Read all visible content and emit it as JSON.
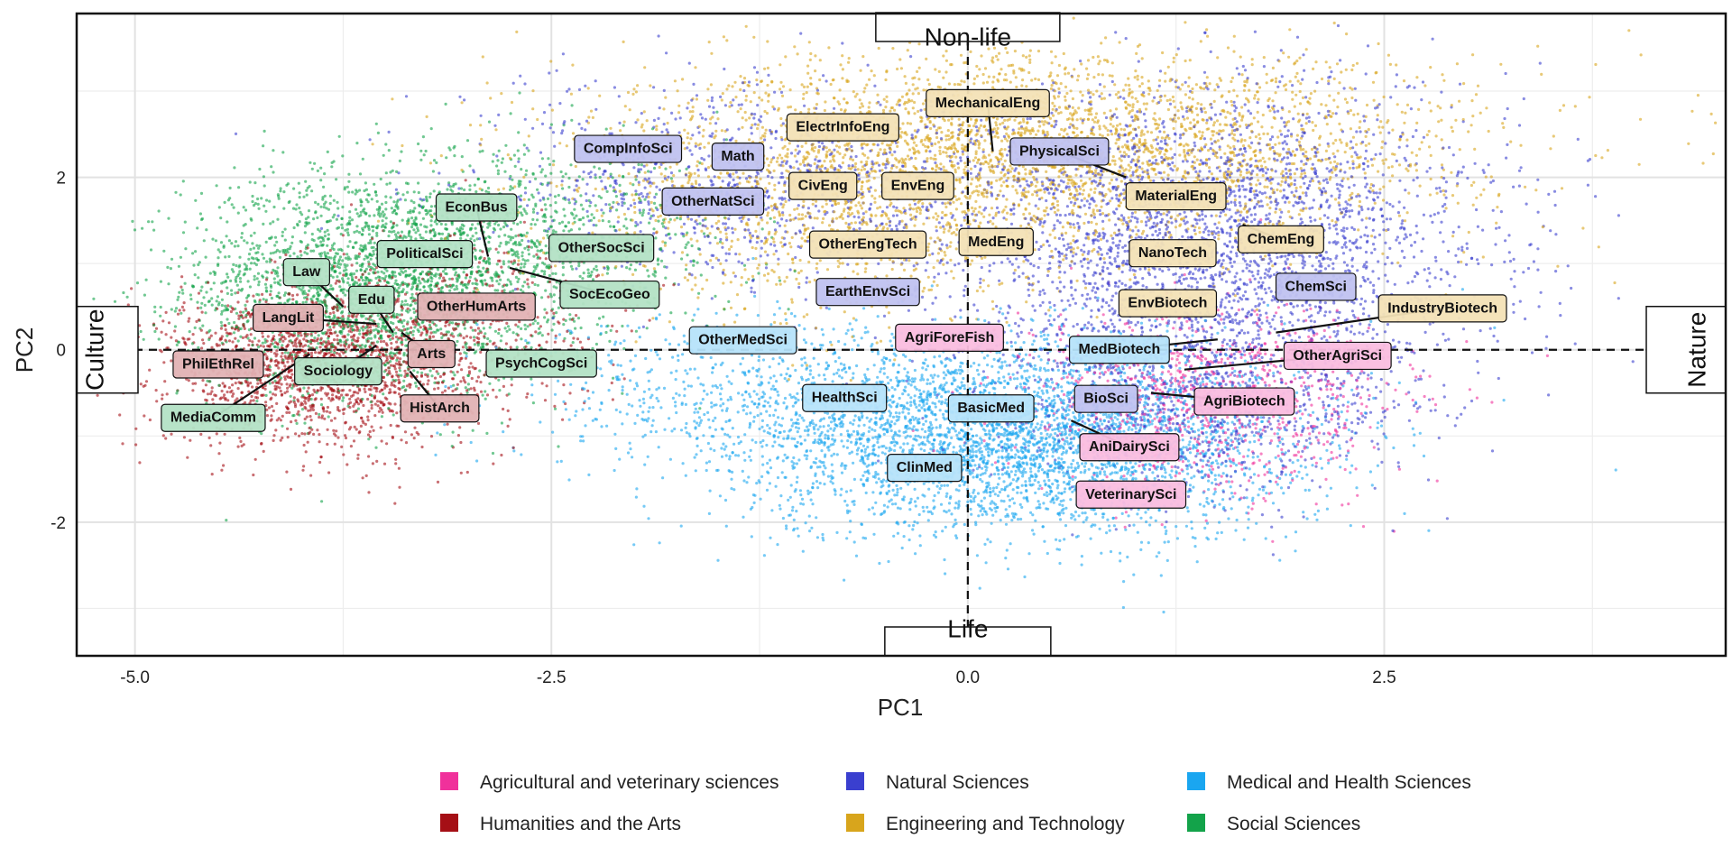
{
  "chart_data": {
    "type": "scatter",
    "title": "",
    "xlabel": "PC1",
    "ylabel": "PC2",
    "xlim": [
      -5.35,
      4.55
    ],
    "ylim": [
      -3.55,
      3.9
    ],
    "xticks": [
      -5.0,
      -2.5,
      0.0,
      2.5
    ],
    "xtick_labels": [
      "-5.0",
      "-2.5",
      "0.0",
      "2.5"
    ],
    "yticks": [
      -2,
      0,
      2
    ],
    "ytick_labels": [
      "-2",
      "0",
      "2"
    ],
    "grid": true,
    "legend_position": "bottom",
    "poles": {
      "top": "Non-life",
      "bottom": "Life",
      "left": "Culture",
      "right": "Nature"
    },
    "categories": [
      {
        "key": "agri",
        "name": "Agricultural and veterinary sciences",
        "color": "#f0319b"
      },
      {
        "key": "hum",
        "name": "Humanities and the Arts",
        "color": "#a50f15"
      },
      {
        "key": "nat",
        "name": "Natural Sciences",
        "color": "#3a3fcf"
      },
      {
        "key": "eng",
        "name": "Engineering and Technology",
        "color": "#d8a51c"
      },
      {
        "key": "med",
        "name": "Medical and Health Sciences",
        "color": "#1aa6f0"
      },
      {
        "key": "soc",
        "name": "Social Sciences",
        "color": "#13a34a"
      }
    ],
    "clusters": [
      {
        "cat": "soc",
        "cx": -3.6,
        "cy": 0.75,
        "sx": 0.55,
        "sy": 0.65,
        "n": 2400
      },
      {
        "cat": "soc",
        "cx": -2.6,
        "cy": 1.2,
        "sx": 0.6,
        "sy": 0.55,
        "n": 900
      },
      {
        "cat": "hum",
        "cx": -3.9,
        "cy": -0.2,
        "sx": 0.45,
        "sy": 0.45,
        "n": 1700
      },
      {
        "cat": "hum",
        "cx": -3.1,
        "cy": 0.35,
        "sx": 0.45,
        "sy": 0.55,
        "n": 500
      },
      {
        "cat": "eng",
        "cx": 0.5,
        "cy": 2.35,
        "sx": 1.25,
        "sy": 0.55,
        "n": 3200
      },
      {
        "cat": "eng",
        "cx": -0.7,
        "cy": 1.5,
        "sx": 0.9,
        "sy": 0.6,
        "n": 900
      },
      {
        "cat": "nat",
        "cx": 1.5,
        "cy": 1.2,
        "sx": 0.8,
        "sy": 0.9,
        "n": 3000
      },
      {
        "cat": "nat",
        "cx": -1.2,
        "cy": 1.9,
        "sx": 0.9,
        "sy": 0.6,
        "n": 1000
      },
      {
        "cat": "nat",
        "cx": 1.4,
        "cy": -0.6,
        "sx": 0.6,
        "sy": 0.5,
        "n": 800
      },
      {
        "cat": "med",
        "cx": 0.3,
        "cy": -1.05,
        "sx": 0.85,
        "sy": 0.55,
        "n": 3800
      },
      {
        "cat": "med",
        "cx": -1.2,
        "cy": -0.5,
        "sx": 0.8,
        "sy": 0.5,
        "n": 700
      },
      {
        "cat": "agri",
        "cx": 1.45,
        "cy": -0.55,
        "sx": 0.55,
        "sy": 0.55,
        "n": 900
      }
    ],
    "labels": [
      {
        "text": "MechanicalEng",
        "x": 0.12,
        "y": 2.86,
        "px": 0.15,
        "py": 2.3,
        "cat": "eng"
      },
      {
        "text": "ElectrInfoEng",
        "x": -0.75,
        "y": 2.58,
        "cat": "eng"
      },
      {
        "text": "CompInfoSci",
        "x": -2.04,
        "y": 2.33,
        "cat": "nat"
      },
      {
        "text": "Math",
        "x": -1.38,
        "y": 2.24,
        "cat": "nat"
      },
      {
        "text": "PhysicalSci",
        "x": 0.55,
        "y": 2.3,
        "px": 0.95,
        "py": 2.0,
        "cat": "nat"
      },
      {
        "text": "CivEng",
        "x": -0.87,
        "y": 1.9,
        "cat": "eng"
      },
      {
        "text": "EnvEng",
        "x": -0.3,
        "y": 1.9,
        "cat": "eng"
      },
      {
        "text": "OtherNatSci",
        "x": -1.53,
        "y": 1.72,
        "cat": "nat"
      },
      {
        "text": "MaterialEng",
        "x": 1.25,
        "y": 1.78,
        "cat": "eng"
      },
      {
        "text": "EconBus",
        "x": -2.95,
        "y": 1.65,
        "px": -2.88,
        "py": 1.08,
        "cat": "soc"
      },
      {
        "text": "ChemEng",
        "x": 1.88,
        "y": 1.28,
        "px": 1.65,
        "py": 1.45,
        "cat": "eng"
      },
      {
        "text": "OtherEngTech",
        "x": -0.6,
        "y": 1.22,
        "cat": "eng"
      },
      {
        "text": "MedEng",
        "x": 0.17,
        "y": 1.25,
        "cat": "eng"
      },
      {
        "text": "OtherSocSci",
        "x": -2.2,
        "y": 1.18,
        "cat": "soc"
      },
      {
        "text": "NanoTech",
        "x": 1.23,
        "y": 1.12,
        "cat": "eng"
      },
      {
        "text": "PoliticalSci",
        "x": -3.26,
        "y": 1.11,
        "cat": "soc"
      },
      {
        "text": "Law",
        "x": -3.97,
        "y": 0.9,
        "px": -3.75,
        "py": 0.5,
        "cat": "soc"
      },
      {
        "text": "ChemSci",
        "x": 2.09,
        "y": 0.73,
        "cat": "nat"
      },
      {
        "text": "EarthEnvSci",
        "x": -0.6,
        "y": 0.67,
        "cat": "nat"
      },
      {
        "text": "SocEcoGeo",
        "x": -2.15,
        "y": 0.64,
        "px": -2.75,
        "py": 0.95,
        "cat": "soc"
      },
      {
        "text": "Edu",
        "x": -3.58,
        "y": 0.58,
        "px": -3.45,
        "py": 0.2,
        "cat": "soc"
      },
      {
        "text": "EnvBiotech",
        "x": 1.2,
        "y": 0.54,
        "cat": "eng"
      },
      {
        "text": "OtherHumArts",
        "x": -2.95,
        "y": 0.5,
        "cat": "hum"
      },
      {
        "text": "IndustryBiotech",
        "x": 2.85,
        "y": 0.48,
        "px": 1.85,
        "py": 0.2,
        "cat": "eng"
      },
      {
        "text": "LangLit",
        "x": -4.08,
        "y": 0.37,
        "px": -3.55,
        "py": 0.3,
        "cat": "hum"
      },
      {
        "text": "AgriForeFish",
        "x": -0.11,
        "y": 0.14,
        "cat": "agri"
      },
      {
        "text": "OtherMedSci",
        "x": -1.35,
        "y": 0.11,
        "cat": "med"
      },
      {
        "text": "MedBiotech",
        "x": 0.91,
        "y": 0.0,
        "px": 1.5,
        "py": 0.12,
        "cat": "med"
      },
      {
        "text": "OtherAgriSci",
        "x": 2.22,
        "y": -0.07,
        "px": 1.3,
        "py": -0.23,
        "cat": "agri"
      },
      {
        "text": "Arts",
        "x": -3.22,
        "y": -0.05,
        "px": -3.4,
        "py": 0.2,
        "cat": "hum"
      },
      {
        "text": "PsychCogSci",
        "x": -2.56,
        "y": -0.16,
        "cat": "soc"
      },
      {
        "text": "PhilEthRel",
        "x": -4.5,
        "y": -0.17,
        "cat": "hum"
      },
      {
        "text": "Sociology",
        "x": -3.78,
        "y": -0.25,
        "px": -3.55,
        "py": 0.05,
        "cat": "soc"
      },
      {
        "text": "BioSci",
        "x": 0.83,
        "y": -0.57,
        "cat": "nat"
      },
      {
        "text": "AgriBiotech",
        "x": 1.66,
        "y": -0.6,
        "px": 1.1,
        "py": -0.5,
        "cat": "agri"
      },
      {
        "text": "HealthSci",
        "x": -0.74,
        "y": -0.56,
        "cat": "med"
      },
      {
        "text": "BasicMed",
        "x": 0.14,
        "y": -0.68,
        "cat": "med"
      },
      {
        "text": "HistArch",
        "x": -3.17,
        "y": -0.68,
        "px": -3.35,
        "py": -0.25,
        "cat": "hum"
      },
      {
        "text": "MediaComm",
        "x": -4.53,
        "y": -0.79,
        "px": -3.95,
        "py": -0.05,
        "cat": "soc"
      },
      {
        "text": "AniDairySci",
        "x": 0.97,
        "y": -1.13,
        "px": 0.62,
        "py": -0.82,
        "cat": "agri"
      },
      {
        "text": "ClinMed",
        "x": -0.26,
        "y": -1.37,
        "cat": "med"
      },
      {
        "text": "VeterinarySci",
        "x": 0.98,
        "y": -1.68,
        "cat": "agri"
      }
    ]
  }
}
